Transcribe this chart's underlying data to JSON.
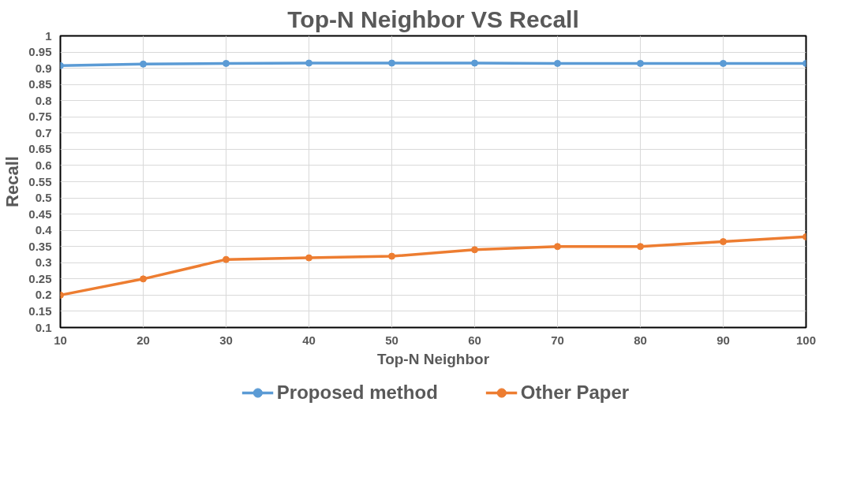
{
  "chart_data": {
    "type": "line",
    "title": "Top-N Neighbor VS Recall",
    "xlabel": "Top-N Neighbor",
    "ylabel": "Recall",
    "x": [
      10,
      20,
      30,
      40,
      50,
      60,
      70,
      80,
      90,
      100
    ],
    "series": [
      {
        "name": "Proposed method",
        "color": "#5b9bd5",
        "values": [
          0.908,
          0.913,
          0.915,
          0.916,
          0.916,
          0.916,
          0.915,
          0.915,
          0.915,
          0.915
        ]
      },
      {
        "name": "Other Paper",
        "color": "#ed7d31",
        "values": [
          0.2,
          0.25,
          0.31,
          0.315,
          0.32,
          0.34,
          0.35,
          0.35,
          0.365,
          0.38
        ]
      }
    ],
    "xlim": [
      10,
      100
    ],
    "xticks": [
      10,
      20,
      30,
      40,
      50,
      60,
      70,
      80,
      90,
      100
    ],
    "ylim": [
      0.1,
      1
    ],
    "yticks": [
      0.1,
      0.15,
      0.2,
      0.25,
      0.3,
      0.35,
      0.4,
      0.45,
      0.5,
      0.55,
      0.6,
      0.65,
      0.7,
      0.75,
      0.8,
      0.85,
      0.9,
      0.95,
      1
    ],
    "grid": true,
    "legend": "bottom",
    "marker": "circle",
    "line_style": "solid"
  }
}
